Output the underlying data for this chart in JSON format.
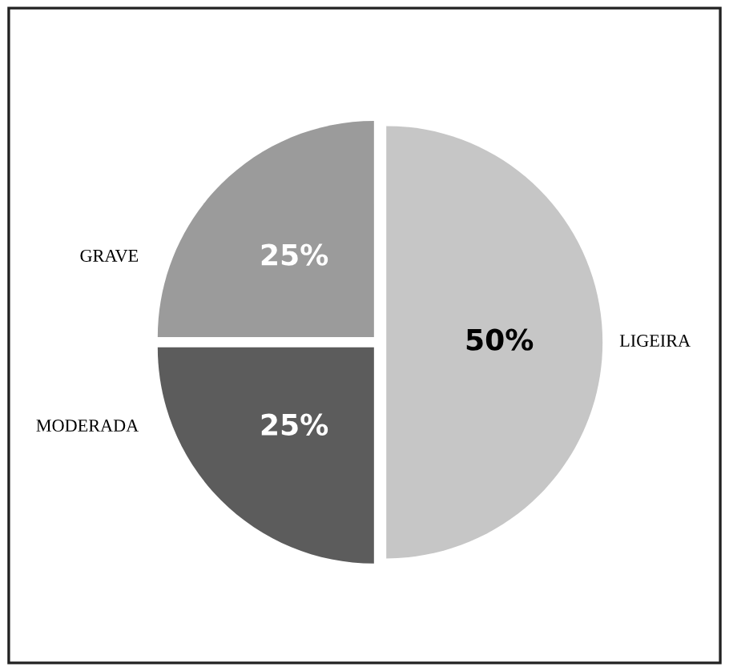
{
  "chart_data": {
    "type": "pie",
    "categories": [
      "LIGEIRA",
      "MODERADA",
      "GRAVE"
    ],
    "values": [
      50,
      25,
      25
    ],
    "colors": [
      "#c6c6c6",
      "#5c5c5c",
      "#9b9b9b"
    ],
    "value_labels": [
      "50%",
      "25%",
      "25%"
    ],
    "legend": false
  }
}
